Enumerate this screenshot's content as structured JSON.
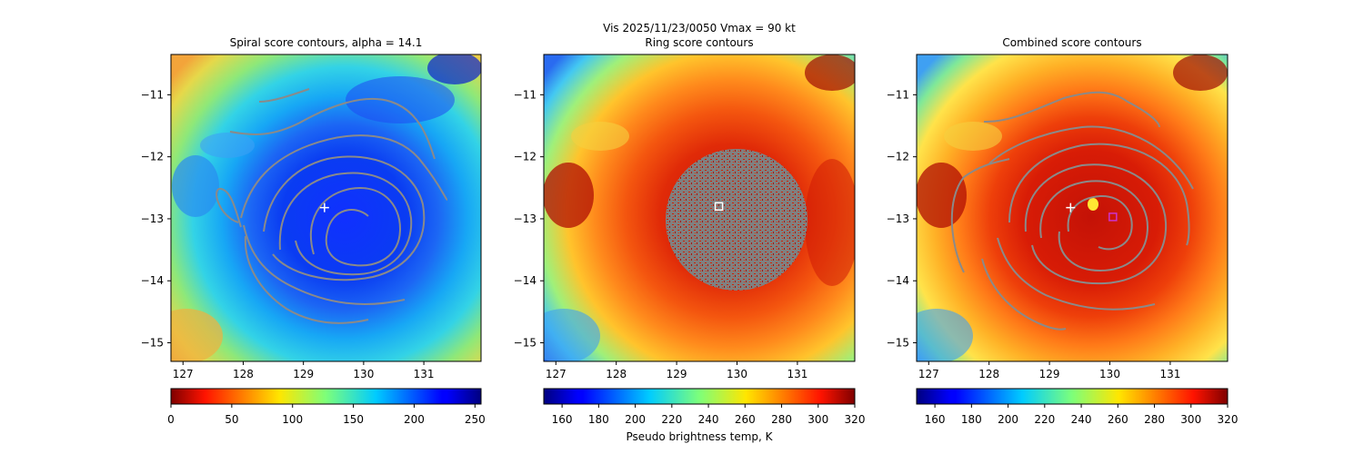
{
  "figure": {
    "suptitle_line": "Vis  2025/11/23/0050    Vmax = 90 kt"
  },
  "chart_data": [
    {
      "type": "heatmap",
      "title": "Spiral score contours, alpha = 14.1",
      "x_ticks": [
        127,
        128,
        129,
        130,
        131
      ],
      "y_ticks": [
        -11,
        -12,
        -13,
        -14,
        -15
      ],
      "xlim": [
        126.8,
        131.95
      ],
      "ylim": [
        -15.3,
        -10.35
      ],
      "colormap": "jet_r",
      "colorbar": {
        "ticks": [
          0,
          50,
          100,
          150,
          200,
          250
        ],
        "range": [
          0,
          255
        ],
        "label": ""
      },
      "markers": [
        {
          "type": "plus",
          "x": 129.35,
          "y": -12.82,
          "color": "#ffffff"
        }
      ]
    },
    {
      "type": "heatmap",
      "title": "Ring score contours",
      "x_ticks": [
        127,
        128,
        129,
        130,
        131
      ],
      "y_ticks": [
        -11,
        -12,
        -13,
        -14,
        -15
      ],
      "xlim": [
        126.8,
        131.95
      ],
      "ylim": [
        -15.3,
        -10.35
      ],
      "colormap": "jet",
      "colorbar": {
        "ticks": [
          160,
          180,
          200,
          220,
          240,
          260,
          280,
          300,
          320
        ],
        "range": [
          150,
          320
        ],
        "label": "Pseudo brightness temp, K"
      },
      "markers": [
        {
          "type": "square",
          "x": 129.7,
          "y": -12.8,
          "color": "#ffffff"
        }
      ]
    },
    {
      "type": "heatmap",
      "title": "Combined score contours",
      "x_ticks": [
        127,
        128,
        129,
        130,
        131
      ],
      "y_ticks": [
        -11,
        -12,
        -13,
        -14,
        -15
      ],
      "xlim": [
        126.8,
        131.95
      ],
      "ylim": [
        -15.3,
        -10.35
      ],
      "colormap": "jet",
      "colorbar": {
        "ticks": [
          160,
          180,
          200,
          220,
          240,
          260,
          280,
          300,
          320
        ],
        "range": [
          150,
          320
        ],
        "label": ""
      },
      "markers": [
        {
          "type": "plus",
          "x": 129.35,
          "y": -12.82,
          "color": "#ffffff"
        },
        {
          "type": "square",
          "x": 130.05,
          "y": -12.97,
          "color": "#cc33cc"
        }
      ]
    }
  ]
}
